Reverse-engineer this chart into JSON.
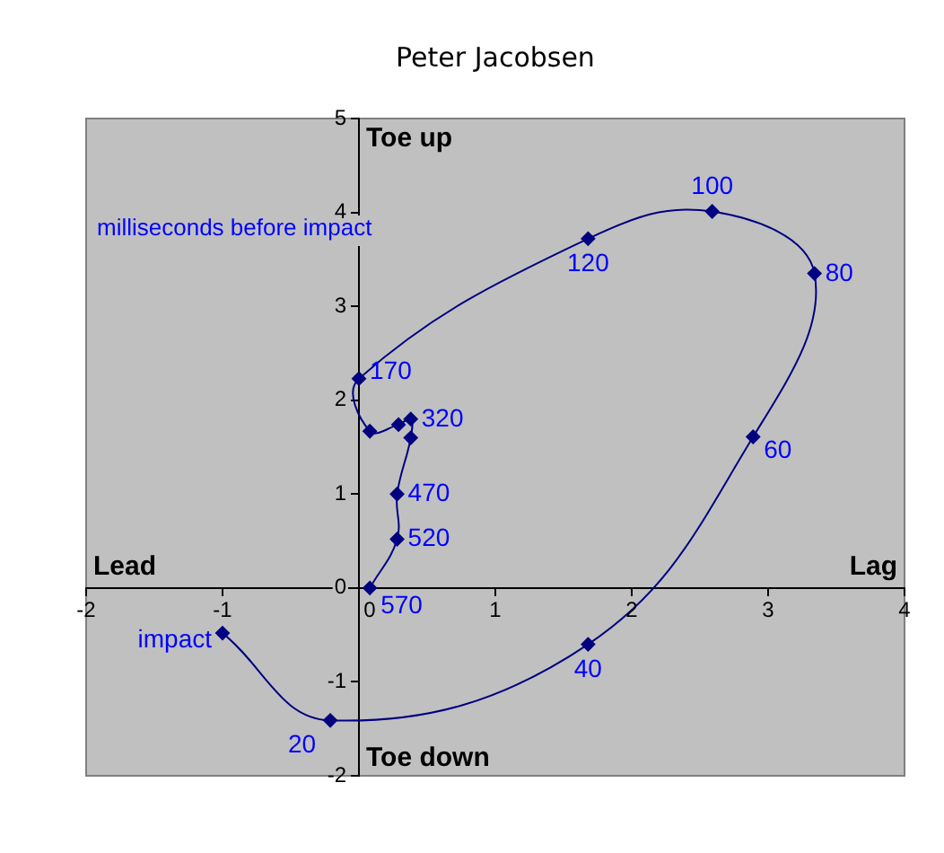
{
  "chart_data": {
    "type": "line",
    "title": "Peter Jacobsen",
    "series": [
      {
        "color": "#000080",
        "x": [
          0.08,
          0.28,
          0.28,
          0.38,
          0.38,
          0.29,
          0.08,
          0,
          1.68,
          2.59,
          3.34,
          2.89,
          1.68,
          -0.21,
          -1.0
        ],
        "values": [
          0,
          0.52,
          1.0,
          1.6,
          1.8,
          1.74,
          1.67,
          2.23,
          3.72,
          4.01,
          3.35,
          1.61,
          -0.6,
          -1.41,
          -0.48
        ]
      }
    ],
    "xlim": [
      -2,
      4
    ],
    "xticks": [
      -2,
      -1,
      0,
      1,
      2,
      3,
      4
    ],
    "ylim": [
      -2,
      5
    ],
    "yticks": [
      -2,
      -1,
      0,
      1,
      2,
      3,
      4,
      5
    ],
    "grid": false,
    "legend": false,
    "marker": "diamond",
    "line_style": "solid",
    "annotations": [
      "Toe up",
      "Toe down",
      "Lead",
      "Lag",
      "milliseconds before impact",
      {
        "text": "570",
        "x": 0.08,
        "y": 0
      },
      {
        "text": "520",
        "x": 0.28,
        "y": 0.52
      },
      {
        "text": "470",
        "x": 0.28,
        "y": 1.0
      },
      {
        "text": "320",
        "x": 0.38,
        "y": 1.8
      },
      {
        "text": "170",
        "x": 0,
        "y": 2.23
      },
      {
        "text": "120",
        "x": 1.68,
        "y": 3.72
      },
      {
        "text": "100",
        "x": 2.59,
        "y": 4.01
      },
      {
        "text": "80",
        "x": 3.34,
        "y": 3.35
      },
      {
        "text": "60",
        "x": 2.89,
        "y": 1.61
      },
      {
        "text": "40",
        "x": 1.68,
        "y": -0.6
      },
      {
        "text": "20",
        "x": -0.21,
        "y": -1.41
      },
      {
        "text": "impact",
        "x": -1.0,
        "y": -0.48
      }
    ]
  }
}
